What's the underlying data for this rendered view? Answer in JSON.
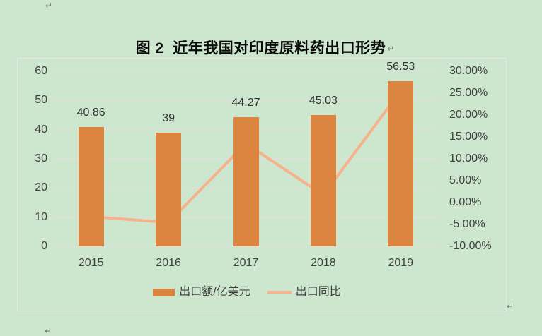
{
  "document": {
    "background": "#CDE7CE",
    "paragraph_mark": "↵",
    "title": "图 2  近年我国对印度原料药出口形势"
  },
  "chart_data": {
    "type": "bar",
    "subtype": "bar-line-combo",
    "categories": [
      "2015",
      "2016",
      "2017",
      "2018",
      "2019"
    ],
    "series": [
      {
        "name": "出口额/亿美元",
        "type": "bar",
        "axis": "left",
        "values": [
          40.86,
          39,
          44.27,
          45.03,
          56.53
        ],
        "data_labels": [
          "40.86",
          "39",
          "44.27",
          "45.03",
          "56.53"
        ],
        "color": "#DB8540"
      },
      {
        "name": "出口同比",
        "type": "line",
        "axis": "right",
        "unit": "%",
        "values": [
          -3.2,
          -4.55,
          13.51,
          1.72,
          25.54
        ],
        "color": "#F6B28C"
      }
    ],
    "left_axis": {
      "min": 0,
      "max": 60,
      "step": 10,
      "tick_labels": [
        "0",
        "10",
        "20",
        "30",
        "40",
        "50",
        "60"
      ]
    },
    "right_axis": {
      "min": -10,
      "max": 30,
      "step": 5,
      "tick_labels": [
        "-10.00%",
        "-5.00%",
        "0.00%",
        "5.00%",
        "10.00%",
        "15.00%",
        "20.00%",
        "25.00%",
        "30.00%"
      ]
    },
    "legend": {
      "position": "bottom",
      "entries": [
        "出口额/亿美元",
        "出口同比"
      ]
    },
    "grid": true,
    "gridline_color": "#E4DDE2",
    "text_color": "#404040",
    "data_label_color": "#333333"
  }
}
